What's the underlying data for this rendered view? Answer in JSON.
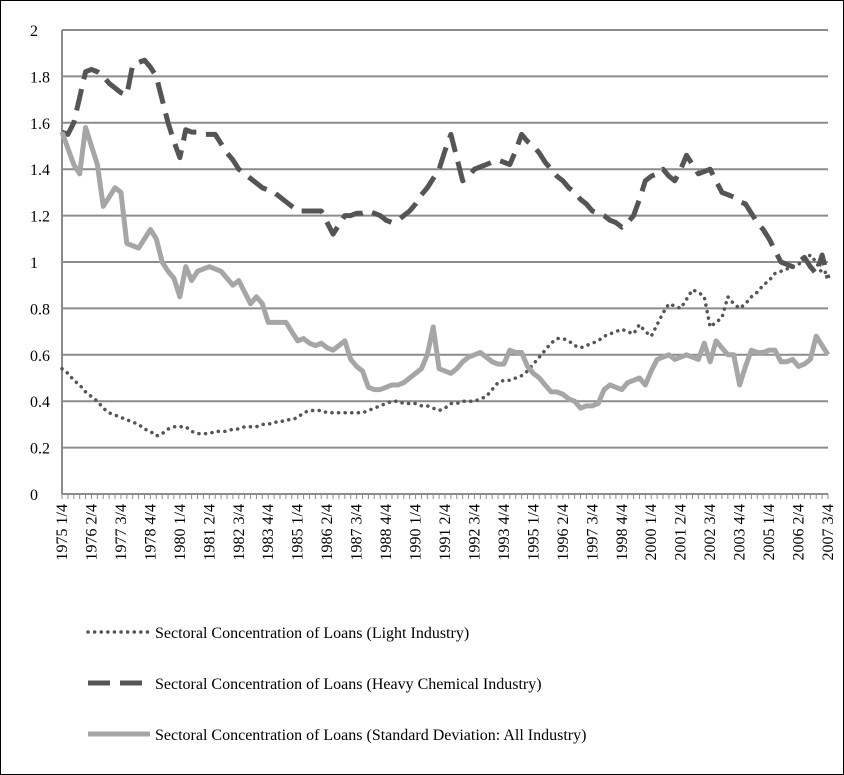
{
  "chart_data": {
    "type": "line",
    "categories": [
      "1975 1/4",
      null,
      null,
      null,
      null,
      "1976 2/4",
      null,
      null,
      null,
      null,
      "1977 3/4",
      null,
      null,
      null,
      null,
      "1978 4/4",
      null,
      null,
      null,
      null,
      "1980 1/4",
      null,
      null,
      null,
      null,
      "1981 2/4",
      null,
      null,
      null,
      null,
      "1982 3/4",
      null,
      null,
      null,
      null,
      "1983 4/4",
      null,
      null,
      null,
      null,
      "1985 1/4",
      null,
      null,
      null,
      null,
      "1986 2/4",
      null,
      null,
      null,
      null,
      "1987 3/4",
      null,
      null,
      null,
      null,
      "1988 4/4",
      null,
      null,
      null,
      null,
      "1990 1/4",
      null,
      null,
      null,
      null,
      "1991 2/4",
      null,
      null,
      null,
      null,
      "1992 3/4",
      null,
      null,
      null,
      null,
      "1993 4/4",
      null,
      null,
      null,
      null,
      "1995 1/4",
      null,
      null,
      null,
      null,
      "1996 2/4",
      null,
      null,
      null,
      null,
      "1997 3/4",
      null,
      null,
      null,
      null,
      "1998 4/4",
      null,
      null,
      null,
      null,
      "2000 1/4",
      null,
      null,
      null,
      null,
      "2001 2/4",
      null,
      null,
      null,
      null,
      "2002 3/4",
      null,
      null,
      null,
      null,
      "2003 4/4",
      null,
      null,
      null,
      null,
      "2005 1/4",
      null,
      null,
      null,
      null,
      "2006 2/4",
      null,
      null,
      null,
      null,
      "2007 3/4"
    ],
    "series": [
      {
        "name": "Sectoral Concentration of Loans (Light Industry)",
        "color": "#555555",
        "dash": "dotted",
        "values": [
          0.54,
          0.52,
          0.49,
          0.47,
          0.44,
          0.42,
          0.4,
          0.37,
          0.35,
          0.34,
          0.33,
          0.32,
          0.31,
          0.3,
          0.28,
          0.27,
          0.25,
          0.26,
          0.28,
          0.29,
          0.29,
          0.29,
          0.27,
          0.26,
          0.26,
          0.26,
          0.27,
          0.27,
          0.27,
          0.28,
          0.28,
          0.29,
          0.29,
          0.29,
          0.3,
          0.3,
          0.31,
          0.31,
          0.32,
          0.32,
          0.33,
          0.35,
          0.36,
          0.36,
          0.36,
          0.35,
          0.35,
          0.35,
          0.35,
          0.35,
          0.35,
          0.35,
          0.36,
          0.37,
          0.38,
          0.39,
          0.4,
          0.4,
          0.39,
          0.39,
          0.39,
          0.38,
          0.38,
          0.37,
          0.36,
          0.37,
          0.39,
          0.39,
          0.4,
          0.4,
          0.4,
          0.41,
          0.42,
          0.45,
          0.48,
          0.49,
          0.49,
          0.5,
          0.51,
          0.53,
          0.56,
          0.59,
          0.62,
          0.65,
          0.67,
          0.67,
          0.66,
          0.64,
          0.63,
          0.64,
          0.65,
          0.66,
          0.68,
          0.69,
          0.7,
          0.71,
          0.7,
          0.69,
          0.73,
          0.7,
          0.68,
          0.73,
          0.78,
          0.82,
          0.81,
          0.8,
          0.84,
          0.88,
          0.87,
          0.85,
          0.72,
          0.74,
          0.76,
          0.85,
          0.82,
          0.8,
          0.82,
          0.85,
          0.87,
          0.9,
          0.92,
          0.95,
          0.96,
          0.97,
          0.98,
          0.99,
          1.01,
          1.03,
          1.0,
          0.95,
          0.96
        ]
      },
      {
        "name": "Sectoral Concentration of Loans (Heavy Chemical Industry)",
        "color": "#555555",
        "dash": "dashed",
        "values": [
          1.56,
          1.55,
          1.6,
          1.71,
          1.82,
          1.83,
          1.82,
          1.8,
          1.77,
          1.75,
          1.73,
          1.72,
          1.85,
          1.86,
          1.87,
          1.84,
          1.8,
          1.7,
          1.6,
          1.52,
          1.45,
          1.57,
          1.56,
          1.56,
          1.55,
          1.55,
          1.55,
          1.51,
          1.47,
          1.44,
          1.4,
          1.38,
          1.36,
          1.34,
          1.32,
          1.31,
          1.3,
          1.28,
          1.26,
          1.24,
          1.22,
          1.22,
          1.22,
          1.22,
          1.22,
          1.17,
          1.12,
          1.16,
          1.2,
          1.2,
          1.21,
          1.21,
          1.22,
          1.21,
          1.2,
          1.18,
          1.17,
          1.18,
          1.2,
          1.22,
          1.25,
          1.29,
          1.32,
          1.36,
          1.4,
          1.48,
          1.55,
          1.45,
          1.35,
          1.37,
          1.4,
          1.41,
          1.42,
          1.43,
          1.44,
          1.43,
          1.42,
          1.48,
          1.55,
          1.52,
          1.5,
          1.47,
          1.43,
          1.4,
          1.37,
          1.35,
          1.32,
          1.3,
          1.27,
          1.25,
          1.22,
          1.21,
          1.2,
          1.18,
          1.17,
          1.15,
          1.17,
          1.2,
          1.27,
          1.35,
          1.37,
          1.38,
          1.4,
          1.37,
          1.35,
          1.4,
          1.46,
          1.42,
          1.38,
          1.39,
          1.4,
          1.35,
          1.3,
          1.29,
          1.28,
          1.26,
          1.25,
          1.21,
          1.17,
          1.14,
          1.1,
          1.05,
          1.0,
          0.99,
          0.98,
          1.0,
          1.02,
          0.98,
          0.95,
          1.03,
          0.93
        ]
      },
      {
        "name": "Sectoral Concentration of Loans (Standard Deviation: All Industry)",
        "color": "#a6a6a6",
        "dash": "solid",
        "values": [
          1.56,
          1.49,
          1.42,
          1.38,
          1.58,
          1.5,
          1.42,
          1.24,
          1.28,
          1.32,
          1.3,
          1.08,
          1.07,
          1.06,
          1.1,
          1.14,
          1.1,
          1.0,
          0.96,
          0.93,
          0.85,
          0.98,
          0.92,
          0.96,
          0.97,
          0.98,
          0.97,
          0.96,
          0.93,
          0.9,
          0.92,
          0.87,
          0.82,
          0.85,
          0.82,
          0.74,
          0.74,
          0.74,
          0.74,
          0.7,
          0.66,
          0.67,
          0.65,
          0.64,
          0.65,
          0.63,
          0.62,
          0.64,
          0.66,
          0.58,
          0.55,
          0.53,
          0.46,
          0.45,
          0.45,
          0.46,
          0.47,
          0.47,
          0.48,
          0.5,
          0.52,
          0.54,
          0.6,
          0.72,
          0.54,
          0.53,
          0.52,
          0.54,
          0.57,
          0.59,
          0.6,
          0.61,
          0.59,
          0.57,
          0.56,
          0.56,
          0.62,
          0.61,
          0.61,
          0.55,
          0.52,
          0.5,
          0.47,
          0.44,
          0.44,
          0.43,
          0.41,
          0.4,
          0.37,
          0.38,
          0.38,
          0.39,
          0.45,
          0.47,
          0.46,
          0.45,
          0.48,
          0.49,
          0.5,
          0.47,
          0.53,
          0.58,
          0.59,
          0.6,
          0.58,
          0.59,
          0.6,
          0.59,
          0.58,
          0.65,
          0.57,
          0.66,
          0.63,
          0.6,
          0.6,
          0.47,
          0.55,
          0.62,
          0.61,
          0.61,
          0.62,
          0.62,
          0.57,
          0.57,
          0.58,
          0.55,
          0.56,
          0.58,
          0.68,
          0.64,
          0.6
        ]
      }
    ],
    "ylim": [
      0,
      2
    ],
    "yticks": [
      0,
      0.2,
      0.4,
      0.6,
      0.8,
      1,
      1.2,
      1.4,
      1.6,
      1.8,
      2
    ],
    "grid": true,
    "legend": "bottom"
  }
}
